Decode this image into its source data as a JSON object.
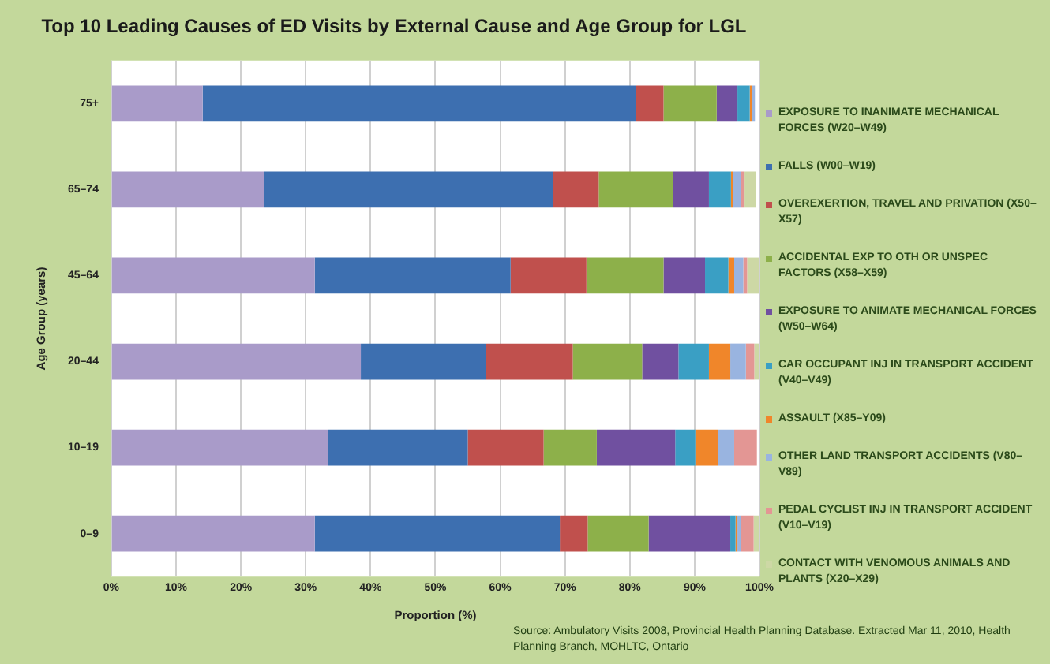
{
  "chart_data": {
    "type": "bar",
    "title": "Top 10 Leading Causes of ED Visits by External Cause and Age Group for LGL",
    "xlabel": "Proportion (%)",
    "ylabel": "Age Group (years)",
    "orientation": "horizontal",
    "stacked": true,
    "grid": "x",
    "legend": "right",
    "categories": [
      "75+",
      "65–74",
      "45–64",
      "20–44",
      "10–19",
      "0–9"
    ],
    "xlim": [
      0,
      100
    ],
    "xticks": [
      {
        "value": 0,
        "label": "0%"
      },
      {
        "value": 10,
        "label": "10%"
      },
      {
        "value": 20,
        "label": "20%"
      },
      {
        "value": 30,
        "label": "30%"
      },
      {
        "value": 40,
        "label": "40%"
      },
      {
        "value": 50,
        "label": "50%"
      },
      {
        "value": 60,
        "label": "60%"
      },
      {
        "value": 70,
        "label": "70%"
      },
      {
        "value": 80,
        "label": "80%"
      },
      {
        "value": 90,
        "label": "90%"
      },
      {
        "value": 100,
        "label": "100%"
      }
    ],
    "series": [
      {
        "name": "EXPOSURE TO INANIMATE MECHANICAL FORCES (W20–W49)",
        "color": "#a99bc9",
        "values": [
          14.1,
          23.6,
          31.4,
          38.5,
          33.4,
          31.4
        ]
      },
      {
        "name": "FALLS (W00–W19)",
        "color": "#3d6fb0",
        "values": [
          66.8,
          44.6,
          30.2,
          19.3,
          21.6,
          37.8
        ]
      },
      {
        "name": "OVEREXERTION, TRAVEL AND PRIVATION (X50–X57)",
        "color": "#c0504d",
        "values": [
          4.3,
          7.0,
          11.7,
          13.4,
          11.7,
          4.3
        ]
      },
      {
        "name": "ACCIDENTAL EXP TO OTH OR UNSPEC FACTORS (X58–X59)",
        "color": "#8db04a",
        "values": [
          8.2,
          11.5,
          11.9,
          10.7,
          8.2,
          9.4
        ]
      },
      {
        "name": "EXPOSURE TO ANIMATE MECHANICAL FORCES (W50–W64)",
        "color": "#7050a0",
        "values": [
          3.2,
          5.5,
          6.4,
          5.6,
          12.1,
          12.6
        ]
      },
      {
        "name": "CAR OCCUPANT INJ IN TRANSPORT ACCIDENT (V40–V49)",
        "color": "#3a9fc4",
        "values": [
          1.9,
          3.4,
          3.6,
          4.7,
          3.1,
          0.8
        ]
      },
      {
        "name": "ASSAULT (X85–Y09)",
        "color": "#f0862a",
        "values": [
          0.4,
          0.3,
          0.9,
          3.3,
          3.5,
          0.3
        ]
      },
      {
        "name": "OTHER LAND TRANSPORT ACCIDENTS (V80–V89)",
        "color": "#99b4e0",
        "values": [
          0.4,
          1.2,
          1.4,
          2.4,
          2.5,
          0.5
        ]
      },
      {
        "name": "PEDAL CYCLIST INJ IN TRANSPORT ACCIDENT (V10–V19)",
        "color": "#e39694",
        "values": [
          null,
          0.6,
          0.6,
          1.3,
          3.5,
          2.0
        ]
      },
      {
        "name": "CONTACT WITH VENOMOUS ANIMALS AND PLANTS (X20–X29)",
        "color": "#cdd8a5",
        "values": [
          null,
          1.8,
          1.9,
          0.8,
          null,
          0.9
        ]
      }
    ],
    "annotations": [
      "Source: Ambulatory Visits 2008, Provincial Health Planning Database. Extracted Mar 11, 2010, Health Planning Branch, MOHLTC, Ontario"
    ]
  }
}
